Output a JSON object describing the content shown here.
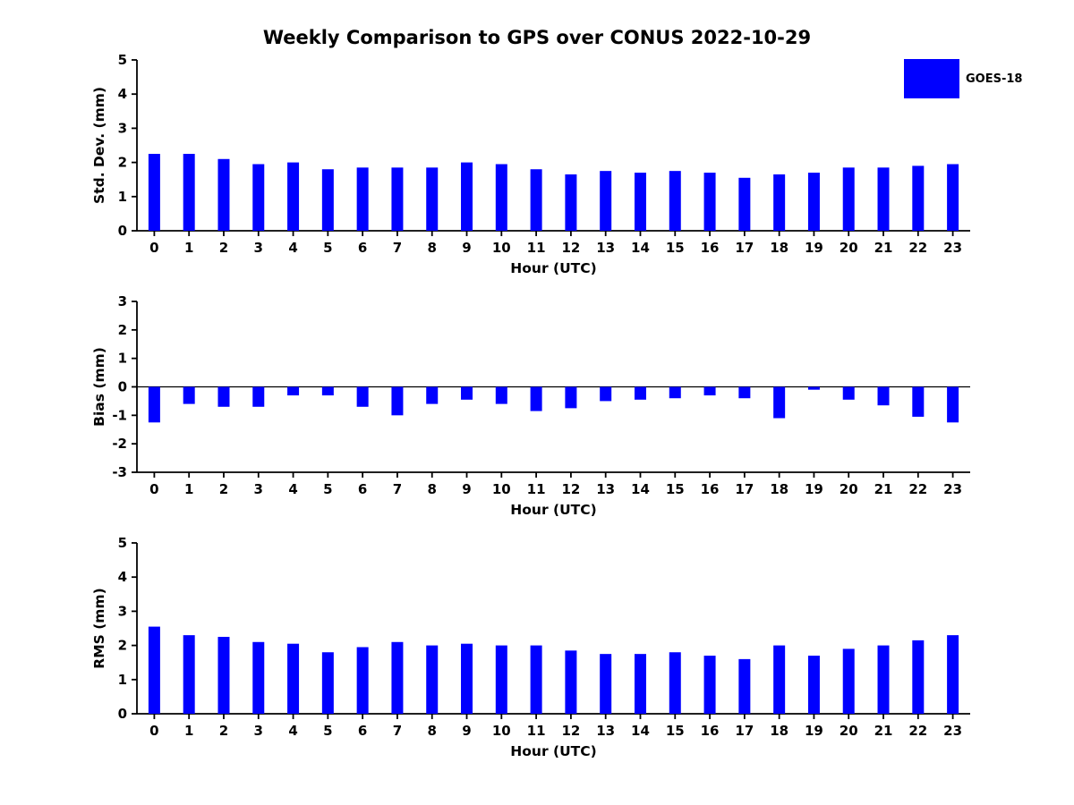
{
  "title": "Weekly Comparison to GPS over CONUS 2022-10-29",
  "legend": {
    "label": "GOES-18",
    "color": "#0000ff"
  },
  "bar_color": "#0000ff",
  "chart_data": [
    {
      "type": "bar",
      "id": "stddev",
      "ylabel": "Std. Dev. (mm)",
      "xlabel": "Hour (UTC)",
      "categories": [
        "0",
        "1",
        "2",
        "3",
        "4",
        "5",
        "6",
        "7",
        "8",
        "9",
        "10",
        "11",
        "12",
        "13",
        "14",
        "15",
        "16",
        "17",
        "18",
        "19",
        "20",
        "21",
        "22",
        "23"
      ],
      "values": [
        2.25,
        2.25,
        2.1,
        1.95,
        2.0,
        1.8,
        1.85,
        1.85,
        1.85,
        2.0,
        1.95,
        1.8,
        1.65,
        1.75,
        1.7,
        1.75,
        1.7,
        1.55,
        1.65,
        1.7,
        1.85,
        1.85,
        1.9,
        1.95
      ],
      "ylim": [
        0,
        5
      ],
      "yticks": [
        0,
        1,
        2,
        3,
        4,
        5
      ],
      "series_name": "GOES-18",
      "grid": false,
      "legend_position": "top-right"
    },
    {
      "type": "bar",
      "id": "bias",
      "ylabel": "Bias (mm)",
      "xlabel": "Hour (UTC)",
      "categories": [
        "0",
        "1",
        "2",
        "3",
        "4",
        "5",
        "6",
        "7",
        "8",
        "9",
        "10",
        "11",
        "12",
        "13",
        "14",
        "15",
        "16",
        "17",
        "18",
        "19",
        "20",
        "21",
        "22",
        "23"
      ],
      "values": [
        -1.25,
        -0.6,
        -0.7,
        -0.7,
        -0.3,
        -0.3,
        -0.7,
        -1.0,
        -0.6,
        -0.45,
        -0.6,
        -0.85,
        -0.75,
        -0.5,
        -0.45,
        -0.4,
        -0.3,
        -0.4,
        -1.1,
        -0.1,
        -0.45,
        -0.65,
        -1.05,
        -1.25
      ],
      "ylim": [
        -3,
        3
      ],
      "yticks": [
        -3,
        -2,
        -1,
        0,
        1,
        2,
        3
      ],
      "series_name": "GOES-18",
      "grid": false,
      "legend_position": "none"
    },
    {
      "type": "bar",
      "id": "rms",
      "ylabel": "RMS (mm)",
      "xlabel": "Hour (UTC)",
      "categories": [
        "0",
        "1",
        "2",
        "3",
        "4",
        "5",
        "6",
        "7",
        "8",
        "9",
        "10",
        "11",
        "12",
        "13",
        "14",
        "15",
        "16",
        "17",
        "18",
        "19",
        "20",
        "21",
        "22",
        "23"
      ],
      "values": [
        2.55,
        2.3,
        2.25,
        2.1,
        2.05,
        1.8,
        1.95,
        2.1,
        2.0,
        2.05,
        2.0,
        2.0,
        1.85,
        1.75,
        1.75,
        1.8,
        1.7,
        1.6,
        2.0,
        1.7,
        1.9,
        2.0,
        2.15,
        2.3
      ],
      "ylim": [
        0,
        5
      ],
      "yticks": [
        0,
        1,
        2,
        3,
        4,
        5
      ],
      "series_name": "GOES-18",
      "grid": false,
      "legend_position": "none"
    }
  ]
}
